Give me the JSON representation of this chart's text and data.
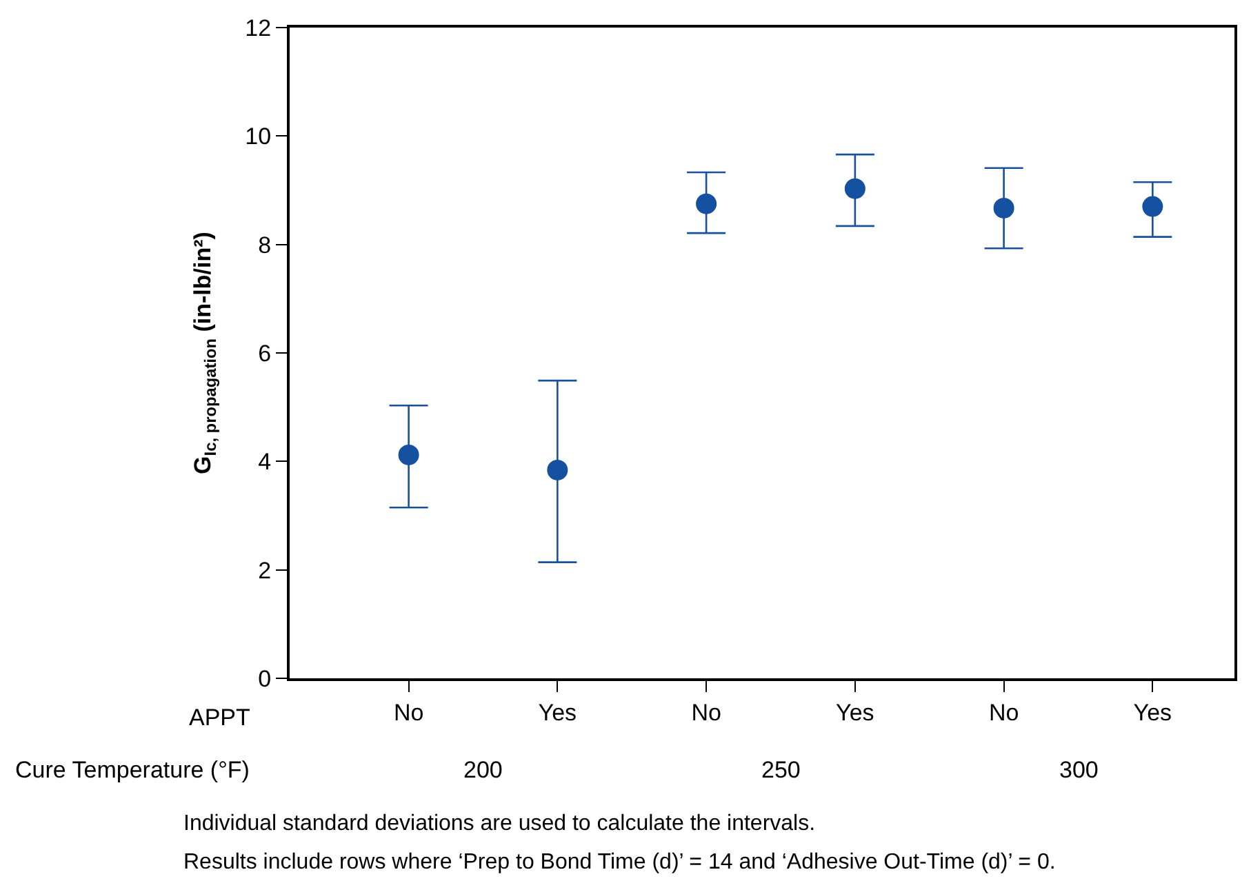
{
  "chart_data": {
    "type": "scatter",
    "xlabel": "APPT",
    "ylabel": "G$_{Ic, propagation}$ (in-lb/in²)",
    "categories": [
      "No",
      "Yes",
      "No",
      "Yes",
      "No",
      "Yes"
    ],
    "values": [
      4.12,
      3.84,
      8.75,
      9.03,
      8.67,
      8.7
    ],
    "errors": [
      [
        3.15,
        5.03
      ],
      [
        2.14,
        5.49
      ],
      [
        8.21,
        9.33
      ],
      [
        8.34,
        9.66
      ],
      [
        7.93,
        9.41
      ],
      [
        8.14,
        9.15
      ]
    ],
    "color": "#1650a0",
    "marker": "circle",
    "ylim": [
      0,
      12
    ],
    "yticks": [
      0,
      2,
      4,
      6,
      8,
      10,
      12
    ],
    "legend": false,
    "annotations": [
      "Cure Temperature (°F)",
      "200",
      "250",
      "300",
      "Individual standard deviations are used to calculate the intervals.",
      "Results include rows where ‘Prep to Bond Time (d)’ = 14 and ‘Adhesive Out-Time (d)’ = 0."
    ]
  }
}
